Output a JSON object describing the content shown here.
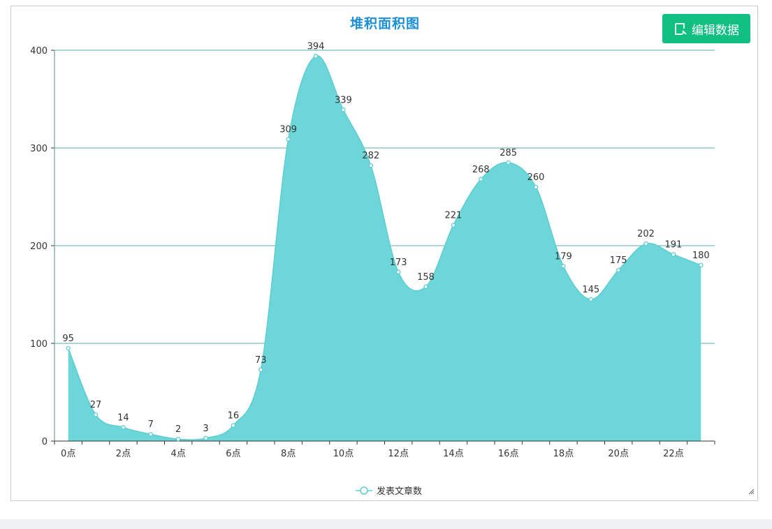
{
  "chart_data": {
    "type": "area",
    "title": "堆积面积图",
    "categories": [
      "0点",
      "1点",
      "2点",
      "3点",
      "4点",
      "5点",
      "6点",
      "7点",
      "8点",
      "9点",
      "10点",
      "11点",
      "12点",
      "13点",
      "14点",
      "15点",
      "16点",
      "17点",
      "18点",
      "19点",
      "20点",
      "21点",
      "22点",
      "23点"
    ],
    "tick_labels": [
      "0点",
      "2点",
      "4点",
      "6点",
      "8点",
      "10点",
      "12点",
      "14点",
      "16点",
      "18点",
      "20点",
      "22点"
    ],
    "series": [
      {
        "name": "发表文章数",
        "values": [
          95,
          27,
          14,
          7,
          2,
          3,
          16,
          73,
          309,
          394,
          339,
          282,
          173,
          158,
          221,
          268,
          285,
          260,
          179,
          145,
          175,
          202,
          191,
          180
        ]
      }
    ],
    "ylim": [
      0,
      400
    ],
    "y_ticks": [
      0,
      100,
      200,
      300,
      400
    ],
    "grid": true,
    "smooth": true,
    "data_labels": true,
    "legend_position": "bottom-center",
    "colors": {
      "area": "#6cd6d8",
      "line": "#5ccdd0",
      "grid": "#5aa7ad",
      "title": "#1b8fd8"
    }
  },
  "toolbar": {
    "edit_data_label": "编辑数据",
    "edit_icon": "edit-icon",
    "button_color": "#11bf82"
  }
}
